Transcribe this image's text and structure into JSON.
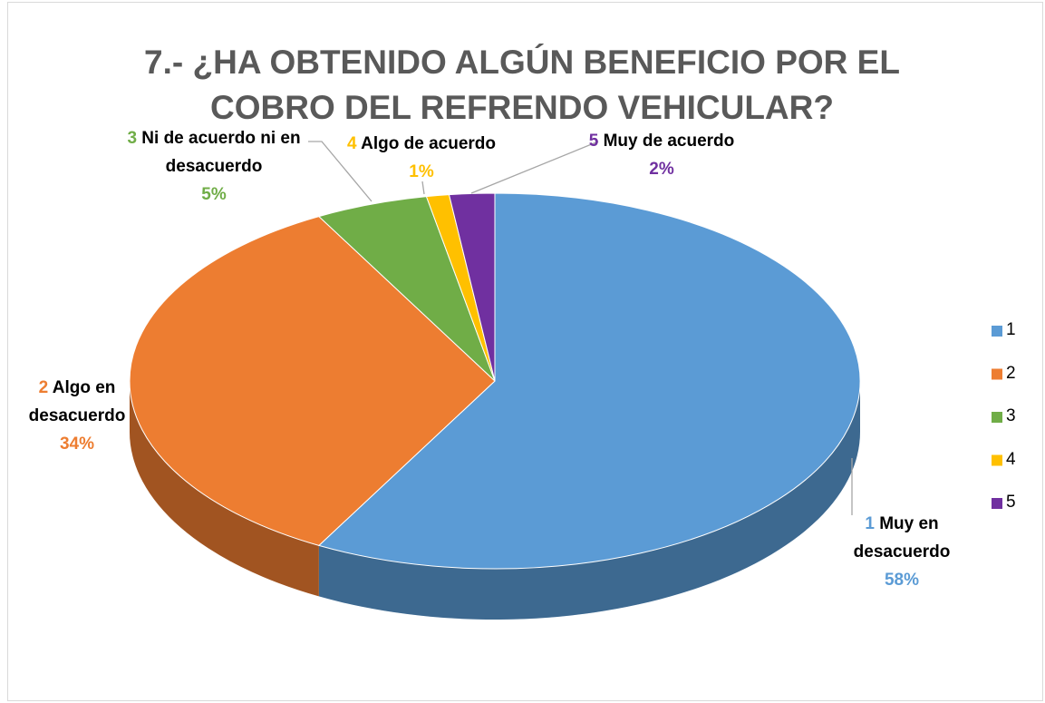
{
  "chart_data": {
    "type": "pie",
    "title": "7.- ¿HA OBTENIDO ALGÚN BENEFICIO POR EL COBRO DEL REFRENDO VEHICULAR?",
    "categories": [
      "1",
      "2",
      "3",
      "4",
      "5"
    ],
    "descriptions": [
      "Muy en desacuerdo",
      "Algo en desacuerdo",
      "Ni de acuerdo ni en desacuerdo",
      "Algo de acuerdo",
      "Muy de acuerdo"
    ],
    "values": [
      58,
      34,
      5,
      1,
      2
    ],
    "value_labels": [
      "58%",
      "34%",
      "5%",
      "1%",
      "2%"
    ],
    "colors": [
      "#5b9bd5",
      "#ed7d31",
      "#70ad47",
      "#ffc000",
      "#7030a0"
    ],
    "legend": "right"
  }
}
